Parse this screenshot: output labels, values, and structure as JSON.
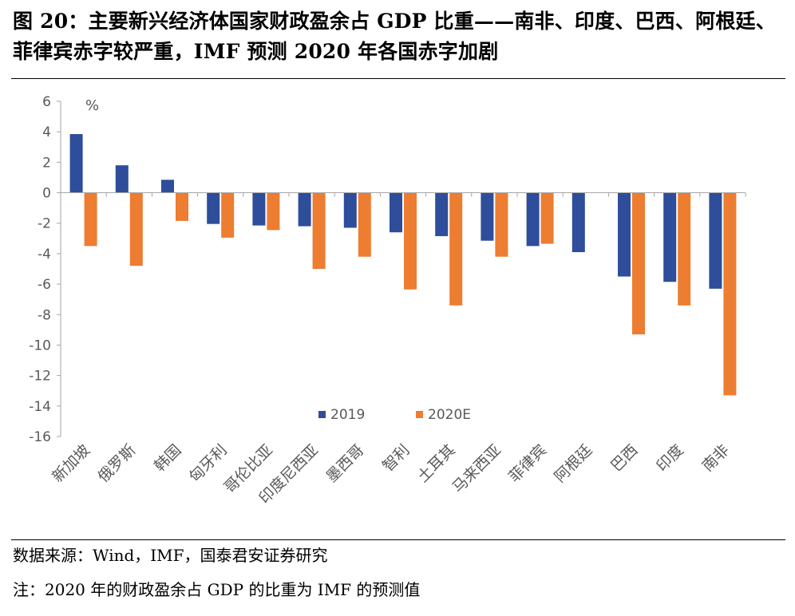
{
  "figure": {
    "title": "图 20：主要新兴经济体国家财政盈余占 GDP 比重——南非、印度、巴西、阿根廷、菲律宾赤字较严重，IMF 预测 2020 年各国赤字加剧",
    "source": "数据来源：Wind，IMF，国泰君安证券研究",
    "note": "注：2020 年的财政盈余占 GDP 的比重为 IMF 的预测值"
  },
  "chart_data": {
    "type": "bar",
    "title": "",
    "xlabel": "",
    "ylabel": "",
    "unit": "%",
    "ylim": [
      -16,
      6
    ],
    "yticks": [
      6,
      4,
      2,
      0,
      -2,
      -4,
      -6,
      -8,
      -10,
      -12,
      -14,
      -16
    ],
    "grid": false,
    "legend_position": "bottom-center",
    "categories": [
      "新加坡",
      "俄罗斯",
      "韩国",
      "匈牙利",
      "哥伦比亚",
      "印度尼西亚",
      "墨西哥",
      "智利",
      "土耳其",
      "马来西亚",
      "菲律宾",
      "阿根廷",
      "巴西",
      "印度",
      "南非"
    ],
    "series": [
      {
        "name": "2019",
        "color": "#2E4D9B",
        "values": [
          3.85,
          1.8,
          0.85,
          -2.05,
          -2.15,
          -2.2,
          -2.3,
          -2.6,
          -2.85,
          -3.15,
          -3.5,
          -3.9,
          -5.5,
          -5.85,
          -6.3
        ]
      },
      {
        "name": "2020E",
        "color": "#ED7D31",
        "values": [
          -3.5,
          -4.8,
          -1.85,
          -2.95,
          -2.45,
          -5.0,
          -4.2,
          -6.35,
          -7.4,
          -4.2,
          -3.35,
          null,
          -9.3,
          -7.4,
          -13.3
        ]
      }
    ]
  }
}
